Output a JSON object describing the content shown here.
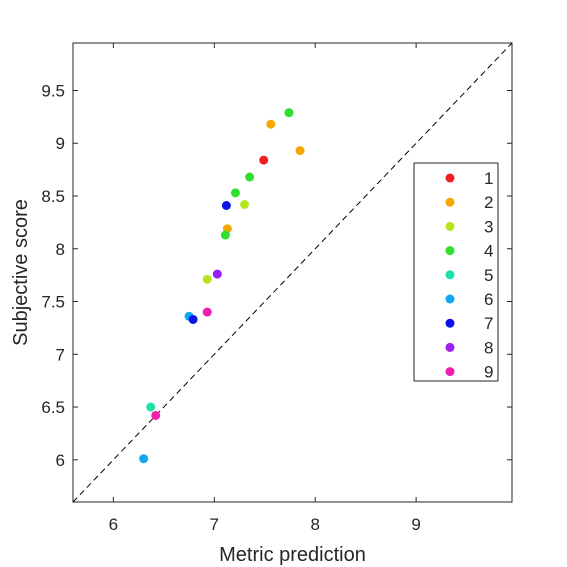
{
  "chart_data": {
    "type": "scatter",
    "xlabel": "Metric prediction",
    "ylabel": "Subjective score",
    "xlim": [
      5.6,
      9.95
    ],
    "ylim": [
      5.6,
      9.95
    ],
    "x_ticks": [
      6,
      7,
      8,
      9
    ],
    "x_tick_labels": [
      "6",
      "7",
      "8",
      "9"
    ],
    "y_ticks": [
      6,
      6.5,
      7,
      7.5,
      8,
      8.5,
      9,
      9.5
    ],
    "y_tick_labels": [
      "6",
      "6.5",
      "7",
      "7.5",
      "8",
      "8.5",
      "9",
      "9.5"
    ],
    "grid": false,
    "reference_line": {
      "style": "dashed",
      "color": "#000000",
      "from": [
        5.6,
        5.6
      ],
      "to": [
        9.95,
        9.95
      ]
    },
    "legend": {
      "placement": "right",
      "entries": [
        "1",
        "2",
        "3",
        "4",
        "5",
        "6",
        "7",
        "8",
        "9"
      ]
    },
    "series": [
      {
        "name": "1",
        "color": "#ef1f1f",
        "points": [
          [
            7.49,
            8.84
          ]
        ]
      },
      {
        "name": "2",
        "color": "#f5a800",
        "points": [
          [
            7.56,
            9.18
          ],
          [
            7.85,
            8.93
          ],
          [
            7.13,
            8.19
          ]
        ]
      },
      {
        "name": "3",
        "color": "#b5e61d",
        "points": [
          [
            7.3,
            8.42
          ],
          [
            6.93,
            7.71
          ]
        ]
      },
      {
        "name": "4",
        "color": "#2fe02f",
        "points": [
          [
            7.74,
            9.29
          ],
          [
            7.35,
            8.68
          ],
          [
            7.21,
            8.53
          ],
          [
            7.11,
            8.13
          ]
        ]
      },
      {
        "name": "5",
        "color": "#1fe0a8",
        "points": [
          [
            6.37,
            6.5
          ]
        ]
      },
      {
        "name": "6",
        "color": "#10a8f0",
        "points": [
          [
            6.75,
            7.36
          ],
          [
            6.3,
            6.01
          ]
        ]
      },
      {
        "name": "7",
        "color": "#0a14e8",
        "points": [
          [
            7.12,
            8.41
          ],
          [
            6.79,
            7.33
          ]
        ]
      },
      {
        "name": "8",
        "color": "#9a1ff0",
        "points": [
          [
            7.03,
            7.76
          ]
        ]
      },
      {
        "name": "9",
        "color": "#f01fb0",
        "points": [
          [
            6.93,
            7.4
          ],
          [
            6.42,
            6.42
          ]
        ]
      }
    ]
  }
}
